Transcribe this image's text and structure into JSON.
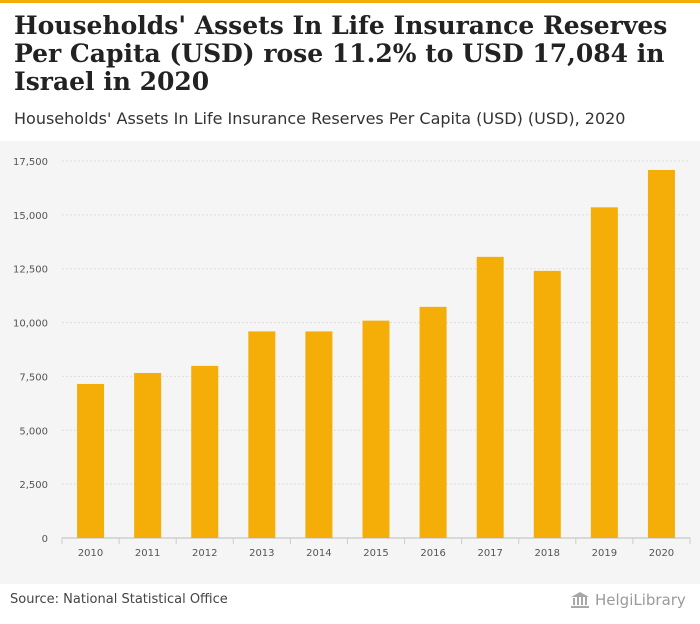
{
  "header": {
    "title": "Households' Assets In Life Insurance Reserves Per Capita (USD) rose 11.2% to USD 17,084 in Israel in 2020",
    "subtitle": "Households' Assets In Life Insurance Reserves Per Capita (USD) (USD), 2020"
  },
  "footer": {
    "source": "Source: National Statistical Office",
    "logo_text": "HelgiLibrary"
  },
  "colors": {
    "accent": "#f5ae08",
    "bar": "#f5ae08",
    "panel": "#f5f5f5",
    "grid": "#dddddd"
  },
  "chart_data": {
    "type": "bar",
    "title": "Households' Assets In Life Insurance Reserves Per Capita (USD) (USD), 2020",
    "xlabel": "",
    "ylabel": "",
    "categories": [
      "2010",
      "2011",
      "2012",
      "2013",
      "2014",
      "2015",
      "2016",
      "2017",
      "2018",
      "2019",
      "2020"
    ],
    "values": [
      7150,
      7660,
      7990,
      9590,
      9590,
      10090,
      10730,
      13050,
      12400,
      15350,
      17084
    ],
    "ylim": [
      0,
      17500
    ],
    "yticks": [
      0,
      2500,
      5000,
      7500,
      10000,
      12500,
      15000,
      17500
    ],
    "ytick_labels": [
      "0",
      "2,500",
      "5,000",
      "7,500",
      "10,000",
      "12,500",
      "15,000",
      "17,500"
    ],
    "grid": true,
    "legend": "none"
  }
}
